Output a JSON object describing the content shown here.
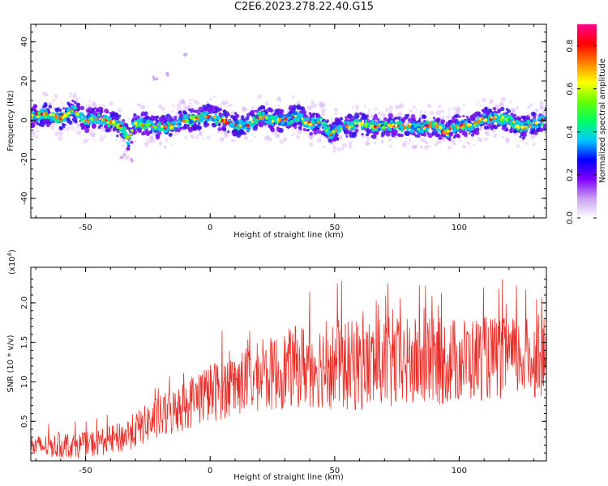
{
  "title": "C2E6.2023.278.22.40.G15",
  "chart_data": [
    {
      "type": "heatmap",
      "xlabel": "Height of straight line (km)",
      "ylabel": "Frequency (Hz)",
      "xlim": [
        -72,
        135
      ],
      "ylim": [
        -50,
        49
      ],
      "xticks": [
        -50,
        0,
        50,
        100
      ],
      "yticks": [
        40,
        20,
        0,
        -20,
        -40
      ],
      "ridge_points": [
        [
          -72,
          2
        ],
        [
          -66,
          3
        ],
        [
          -60,
          1
        ],
        [
          -55,
          5
        ],
        [
          -50,
          0
        ],
        [
          -45,
          1
        ],
        [
          -40,
          -1
        ],
        [
          -35,
          -4
        ],
        [
          -33,
          -10
        ],
        [
          -30,
          -2
        ],
        [
          -25,
          -2
        ],
        [
          -20,
          -4
        ],
        [
          -15,
          -3
        ],
        [
          -10,
          0
        ],
        [
          -5,
          1
        ],
        [
          0,
          2
        ],
        [
          5,
          0
        ],
        [
          10,
          -2
        ],
        [
          15,
          -3
        ],
        [
          20,
          2
        ],
        [
          25,
          0
        ],
        [
          30,
          0
        ],
        [
          35,
          2
        ],
        [
          40,
          -2
        ],
        [
          45,
          -1
        ],
        [
          48,
          -7
        ],
        [
          50,
          -5
        ],
        [
          55,
          -3
        ],
        [
          60,
          -2
        ],
        [
          65,
          -3
        ],
        [
          70,
          -3
        ],
        [
          75,
          -3
        ],
        [
          80,
          -3
        ],
        [
          85,
          -4
        ],
        [
          90,
          -2
        ],
        [
          95,
          -7
        ],
        [
          97,
          -4
        ],
        [
          100,
          -3
        ],
        [
          105,
          -3
        ],
        [
          110,
          1
        ],
        [
          115,
          1
        ],
        [
          120,
          0
        ],
        [
          125,
          -4
        ],
        [
          130,
          -2
        ],
        [
          135,
          1
        ]
      ],
      "outliers": [
        [
          -10,
          34
        ],
        [
          -22,
          21
        ],
        [
          -17,
          23
        ],
        [
          -35,
          -18
        ],
        [
          -31,
          -20
        ]
      ],
      "colorbar": {
        "label": "Normalized spectral amplitude",
        "range": [
          0,
          0.9
        ],
        "ticks": [
          "0.0",
          "0.2",
          "0.4",
          "0.6",
          "0.8"
        ],
        "colors": [
          "#ffffff",
          "#c8a0f0",
          "#8000ff",
          "#0000ff",
          "#00c8ff",
          "#00ff64",
          "#64ff00",
          "#ffff00",
          "#ff8000",
          "#ff0000",
          "#ff0090"
        ]
      }
    },
    {
      "type": "line",
      "xlabel": "Height of straight line (km)",
      "ylabel": "SNR (10 * v/v)",
      "y_multiplier": "(x10^4)",
      "y_multiplier_base": "(x10",
      "y_multiplier_exp": "4",
      "y_multiplier_close": ")",
      "xlim": [
        -72,
        135
      ],
      "ylim": [
        0,
        2.45
      ],
      "xticks": [
        -50,
        0,
        50,
        100
      ],
      "yticks": [
        "0.5",
        "1.0",
        "1.5",
        "2.0"
      ],
      "color": "#e8302a",
      "trend": [
        [
          -72,
          0.18
        ],
        [
          -50,
          0.2
        ],
        [
          -35,
          0.3
        ],
        [
          -25,
          0.48
        ],
        [
          -15,
          0.62
        ],
        [
          -5,
          0.8
        ],
        [
          5,
          0.92
        ],
        [
          15,
          1.02
        ],
        [
          25,
          1.1
        ],
        [
          35,
          1.2
        ],
        [
          45,
          1.22
        ],
        [
          55,
          1.2
        ],
        [
          75,
          1.22
        ],
        [
          90,
          1.25
        ],
        [
          110,
          1.3
        ],
        [
          135,
          1.3
        ]
      ],
      "spread": [
        [
          -72,
          0.14
        ],
        [
          -40,
          0.18
        ],
        [
          -20,
          0.28
        ],
        [
          0,
          0.38
        ],
        [
          20,
          0.45
        ],
        [
          40,
          0.55
        ],
        [
          70,
          0.6
        ],
        [
          100,
          0.55
        ],
        [
          135,
          0.5
        ]
      ],
      "max": 2.45
    }
  ]
}
